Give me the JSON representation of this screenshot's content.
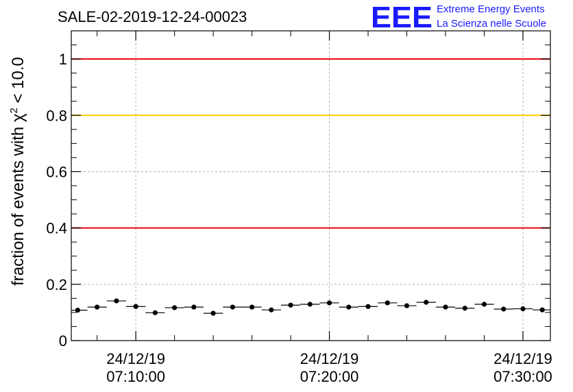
{
  "chart_data": {
    "type": "scatter",
    "title": "SALE-02-2019-12-24-00023",
    "logo": {
      "mark": "EEE",
      "line1": "Extreme Energy Events",
      "line2": "La Scienza nelle Scuole"
    },
    "ylabel": {
      "pre": "fraction of events with ",
      "symbol": "χ",
      "sup": "2",
      "post": " < 10.0"
    },
    "ylim": [
      0,
      1.1
    ],
    "yticks": [
      {
        "value": 0,
        "label": "0"
      },
      {
        "value": 0.2,
        "label": "0.2"
      },
      {
        "value": 0.4,
        "label": "0.4"
      },
      {
        "value": 0.6,
        "label": "0.6"
      },
      {
        "value": 0.8,
        "label": "0.8"
      },
      {
        "value": 1,
        "label": "1"
      }
    ],
    "xlim_minutes": [
      6.667,
      31.417
    ],
    "xticks": [
      {
        "minute": 10,
        "line1": "24/12/19",
        "line2": "07:10:00"
      },
      {
        "minute": 20,
        "line1": "24/12/19",
        "line2": "07:20:00"
      },
      {
        "minute": 30,
        "line1": "24/12/19",
        "line2": "07:30:00"
      }
    ],
    "x_minor_every_minutes": 2,
    "grid": true,
    "reference_lines": [
      {
        "y": 1.0,
        "color": "#e8000b"
      },
      {
        "y": 0.8,
        "color": "#ffc800"
      },
      {
        "y": 0.4,
        "color": "#e8000b"
      }
    ],
    "bin_width_minutes": 1,
    "x": [
      7,
      8,
      9,
      10,
      11,
      12,
      13,
      14,
      15,
      16,
      17,
      18,
      19,
      20,
      21,
      22,
      23,
      24,
      25,
      26,
      27,
      28,
      29,
      30,
      31
    ],
    "values": [
      0.108,
      0.119,
      0.141,
      0.121,
      0.099,
      0.117,
      0.119,
      0.097,
      0.119,
      0.119,
      0.109,
      0.126,
      0.129,
      0.134,
      0.119,
      0.121,
      0.134,
      0.124,
      0.136,
      0.119,
      0.115,
      0.129,
      0.112,
      0.113,
      0.109
    ],
    "marker_color": "#000000"
  }
}
